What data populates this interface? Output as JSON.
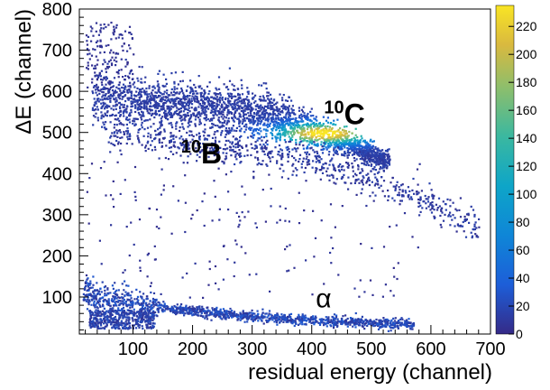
{
  "chart_data": {
    "type": "heatmap",
    "title": "",
    "xlabel": "residual energy (channel)",
    "ylabel": "ΔE (channel)",
    "xlim": [
      10,
      700
    ],
    "ylim": [
      10,
      800
    ],
    "xticks": [
      "100",
      "200",
      "300",
      "400",
      "500",
      "600",
      "700"
    ],
    "yticks": [
      "100",
      "200",
      "300",
      "400",
      "500",
      "600",
      "700",
      "800"
    ],
    "colorbar": {
      "min": 0,
      "max": 235,
      "ticks": [
        "0",
        "20",
        "40",
        "60",
        "80",
        "100",
        "120",
        "140",
        "160",
        "180",
        "200",
        "220"
      ]
    },
    "annotations": [
      {
        "sup": "10",
        "text": "C",
        "x": 455,
        "y": 520
      },
      {
        "sup": "10",
        "text": "B",
        "x": 215,
        "y": 425
      },
      {
        "sup": "",
        "text": "α",
        "x": 420,
        "y": 75
      }
    ],
    "bands": [
      {
        "label": "10C",
        "x": [
          50,
          150,
          250,
          330,
          400,
          450,
          490,
          520
        ],
        "y": [
          580,
          570,
          560,
          540,
          505,
          480,
          455,
          435
        ],
        "peak_x": 420,
        "peak_y": 500,
        "peak_count": 235
      },
      {
        "label": "10B",
        "x": [
          80,
          200,
          300,
          400,
          500,
          600,
          680
        ],
        "y": [
          500,
          475,
          455,
          430,
          390,
          330,
          270
        ],
        "peak_count": 20
      },
      {
        "label": "α",
        "x": [
          20,
          100,
          200,
          300,
          400,
          500,
          570
        ],
        "y": [
          110,
          85,
          68,
          55,
          45,
          38,
          35
        ],
        "peak_count": 40
      }
    ]
  }
}
